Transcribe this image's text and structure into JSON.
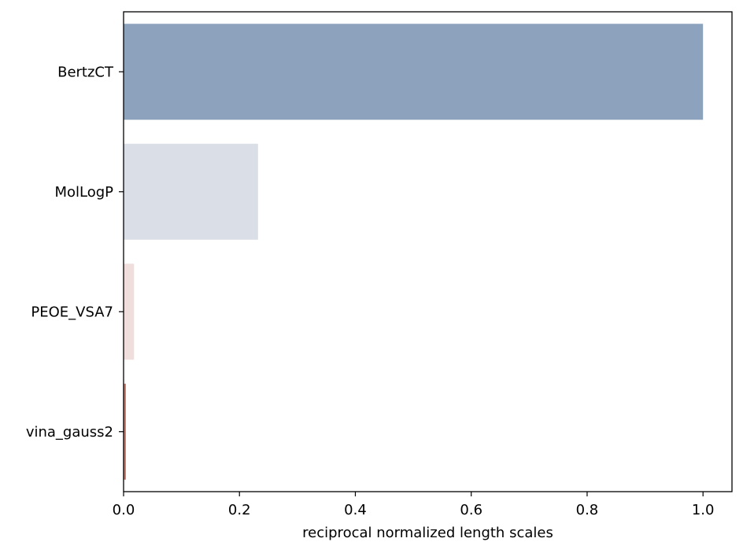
{
  "chart_data": {
    "type": "bar",
    "orientation": "horizontal",
    "title": "",
    "xlabel": "reciprocal normalized length scales",
    "ylabel": "",
    "xlim": [
      0,
      1.05
    ],
    "x_ticks": [
      0.0,
      0.2,
      0.4,
      0.6,
      0.8,
      1.0
    ],
    "x_tick_labels": [
      "0.0",
      "0.2",
      "0.4",
      "0.6",
      "0.8",
      "1.0"
    ],
    "categories": [
      "BertzCT",
      "MolLogP",
      "PEOE_VSA7",
      "vina_gauss2"
    ],
    "values": [
      1.0,
      0.232,
      0.018,
      0.004
    ],
    "bar_colors": [
      "#8da3bd",
      "#dadee6",
      "#f0dedc",
      "#c47a6e"
    ],
    "grid": false,
    "legend": "none"
  }
}
